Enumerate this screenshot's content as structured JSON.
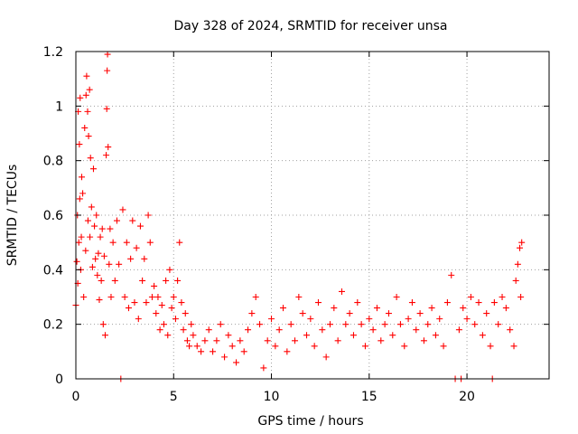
{
  "chart_data": {
    "type": "scatter",
    "title": "Day 328 of 2024, SRMTID for receiver unsa",
    "xlabel": "GPS time / hours",
    "ylabel": "SRMTID / TECUs",
    "xlim": [
      0,
      24.2
    ],
    "ylim": [
      0,
      1.2
    ],
    "x_ticks": [
      0,
      5,
      10,
      15,
      20
    ],
    "x_tick_labels": [
      "0",
      "5",
      "10",
      "15",
      "20"
    ],
    "y_ticks": [
      0,
      0.2,
      0.4,
      0.6,
      0.8,
      1.0,
      1.2
    ],
    "y_tick_labels": [
      "0",
      "0.2",
      "0.4",
      "0.6",
      "0.8",
      "1",
      "1.2"
    ],
    "grid": true,
    "marker": "plus",
    "color": "#ff0000",
    "series": [
      {
        "name": "SRMTID",
        "points": [
          [
            0.0,
            0.27
          ],
          [
            0.05,
            0.43
          ],
          [
            0.08,
            0.6
          ],
          [
            0.1,
            0.35
          ],
          [
            0.12,
            0.98
          ],
          [
            0.15,
            0.5
          ],
          [
            0.18,
            0.86
          ],
          [
            0.2,
            0.66
          ],
          [
            0.22,
            1.03
          ],
          [
            0.25,
            0.4
          ],
          [
            0.28,
            0.52
          ],
          [
            0.3,
            0.74
          ],
          [
            0.35,
            0.68
          ],
          [
            0.4,
            0.3
          ],
          [
            0.45,
            0.92
          ],
          [
            0.5,
            0.47
          ],
          [
            0.52,
            1.04
          ],
          [
            0.55,
            1.11
          ],
          [
            0.6,
            0.98
          ],
          [
            0.62,
            0.58
          ],
          [
            0.65,
            0.89
          ],
          [
            0.7,
            1.06
          ],
          [
            0.72,
            0.52
          ],
          [
            0.75,
            0.81
          ],
          [
            0.8,
            0.63
          ],
          [
            0.85,
            0.41
          ],
          [
            0.9,
            0.77
          ],
          [
            0.95,
            0.56
          ],
          [
            1.0,
            0.44
          ],
          [
            1.05,
            0.6
          ],
          [
            1.1,
            0.38
          ],
          [
            1.15,
            0.46
          ],
          [
            1.2,
            0.29
          ],
          [
            1.25,
            0.52
          ],
          [
            1.3,
            0.36
          ],
          [
            1.35,
            0.55
          ],
          [
            1.4,
            0.2
          ],
          [
            1.45,
            0.45
          ],
          [
            1.5,
            0.16
          ],
          [
            1.55,
            0.82
          ],
          [
            1.58,
            0.99
          ],
          [
            1.6,
            1.13
          ],
          [
            1.62,
            1.19
          ],
          [
            1.65,
            0.85
          ],
          [
            1.7,
            0.42
          ],
          [
            1.75,
            0.55
          ],
          [
            1.8,
            0.3
          ],
          [
            1.9,
            0.5
          ],
          [
            2.0,
            0.36
          ],
          [
            2.1,
            0.58
          ],
          [
            2.2,
            0.42
          ],
          [
            2.3,
            0.0
          ],
          [
            2.4,
            0.62
          ],
          [
            2.5,
            0.3
          ],
          [
            2.6,
            0.5
          ],
          [
            2.7,
            0.26
          ],
          [
            2.8,
            0.44
          ],
          [
            2.9,
            0.58
          ],
          [
            3.0,
            0.28
          ],
          [
            3.1,
            0.48
          ],
          [
            3.2,
            0.22
          ],
          [
            3.3,
            0.56
          ],
          [
            3.4,
            0.36
          ],
          [
            3.5,
            0.44
          ],
          [
            3.6,
            0.28
          ],
          [
            3.7,
            0.6
          ],
          [
            3.8,
            0.5
          ],
          [
            3.9,
            0.3
          ],
          [
            4.0,
            0.34
          ],
          [
            4.1,
            0.24
          ],
          [
            4.2,
            0.3
          ],
          [
            4.3,
            0.18
          ],
          [
            4.4,
            0.27
          ],
          [
            4.5,
            0.2
          ],
          [
            4.6,
            0.36
          ],
          [
            4.7,
            0.16
          ],
          [
            4.8,
            0.4
          ],
          [
            4.9,
            0.26
          ],
          [
            5.0,
            0.3
          ],
          [
            5.1,
            0.22
          ],
          [
            5.2,
            0.36
          ],
          [
            5.3,
            0.5
          ],
          [
            5.4,
            0.28
          ],
          [
            5.5,
            0.18
          ],
          [
            5.6,
            0.24
          ],
          [
            5.7,
            0.14
          ],
          [
            5.8,
            0.12
          ],
          [
            5.9,
            0.2
          ],
          [
            6.0,
            0.16
          ],
          [
            6.2,
            0.12
          ],
          [
            6.4,
            0.1
          ],
          [
            6.6,
            0.14
          ],
          [
            6.8,
            0.18
          ],
          [
            7.0,
            0.1
          ],
          [
            7.2,
            0.14
          ],
          [
            7.4,
            0.2
          ],
          [
            7.6,
            0.08
          ],
          [
            7.8,
            0.16
          ],
          [
            8.0,
            0.12
          ],
          [
            8.2,
            0.06
          ],
          [
            8.4,
            0.14
          ],
          [
            8.6,
            0.1
          ],
          [
            8.8,
            0.18
          ],
          [
            9.0,
            0.24
          ],
          [
            9.2,
            0.3
          ],
          [
            9.4,
            0.2
          ],
          [
            9.6,
            0.04
          ],
          [
            9.8,
            0.14
          ],
          [
            10.0,
            0.22
          ],
          [
            10.2,
            0.12
          ],
          [
            10.4,
            0.18
          ],
          [
            10.6,
            0.26
          ],
          [
            10.8,
            0.1
          ],
          [
            11.0,
            0.2
          ],
          [
            11.2,
            0.14
          ],
          [
            11.4,
            0.3
          ],
          [
            11.6,
            0.24
          ],
          [
            11.8,
            0.16
          ],
          [
            12.0,
            0.22
          ],
          [
            12.2,
            0.12
          ],
          [
            12.4,
            0.28
          ],
          [
            12.6,
            0.18
          ],
          [
            12.8,
            0.08
          ],
          [
            13.0,
            0.2
          ],
          [
            13.2,
            0.26
          ],
          [
            13.4,
            0.14
          ],
          [
            13.6,
            0.32
          ],
          [
            13.8,
            0.2
          ],
          [
            14.0,
            0.24
          ],
          [
            14.2,
            0.16
          ],
          [
            14.4,
            0.28
          ],
          [
            14.6,
            0.2
          ],
          [
            14.8,
            0.12
          ],
          [
            15.0,
            0.22
          ],
          [
            15.2,
            0.18
          ],
          [
            15.4,
            0.26
          ],
          [
            15.6,
            0.14
          ],
          [
            15.8,
            0.2
          ],
          [
            16.0,
            0.24
          ],
          [
            16.2,
            0.16
          ],
          [
            16.4,
            0.3
          ],
          [
            16.6,
            0.2
          ],
          [
            16.8,
            0.12
          ],
          [
            17.0,
            0.22
          ],
          [
            17.2,
            0.28
          ],
          [
            17.4,
            0.18
          ],
          [
            17.6,
            0.24
          ],
          [
            17.8,
            0.14
          ],
          [
            18.0,
            0.2
          ],
          [
            18.2,
            0.26
          ],
          [
            18.4,
            0.16
          ],
          [
            18.6,
            0.22
          ],
          [
            18.8,
            0.12
          ],
          [
            19.0,
            0.28
          ],
          [
            19.2,
            0.38
          ],
          [
            19.4,
            0.0
          ],
          [
            19.6,
            0.18
          ],
          [
            19.7,
            0.0
          ],
          [
            19.8,
            0.26
          ],
          [
            20.0,
            0.22
          ],
          [
            20.2,
            0.3
          ],
          [
            20.4,
            0.2
          ],
          [
            20.6,
            0.28
          ],
          [
            20.8,
            0.16
          ],
          [
            21.0,
            0.24
          ],
          [
            21.2,
            0.12
          ],
          [
            21.3,
            0.0
          ],
          [
            21.4,
            0.28
          ],
          [
            21.6,
            0.2
          ],
          [
            21.8,
            0.3
          ],
          [
            22.0,
            0.26
          ],
          [
            22.2,
            0.18
          ],
          [
            22.4,
            0.12
          ],
          [
            22.5,
            0.36
          ],
          [
            22.6,
            0.42
          ],
          [
            22.7,
            0.48
          ],
          [
            22.75,
            0.3
          ],
          [
            22.8,
            0.5
          ]
        ]
      }
    ]
  }
}
